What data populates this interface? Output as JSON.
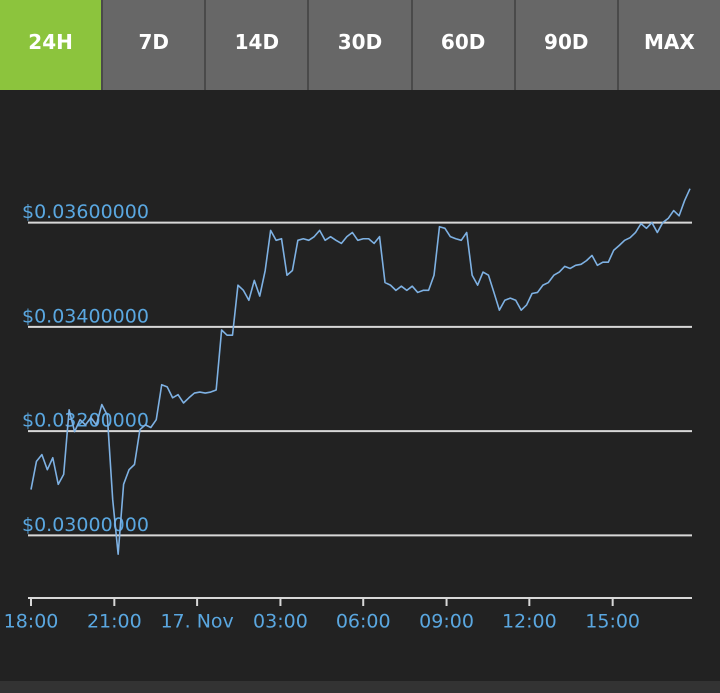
{
  "tabs": [
    "24H",
    "7D",
    "14D",
    "30D",
    "60D",
    "90D",
    "MAX"
  ],
  "active_tab": 0,
  "chart_data": {
    "type": "line",
    "series": [
      {
        "color": "#7eb1e3",
        "values": [
          0.03088,
          0.03142,
          0.03155,
          0.03126,
          0.03149,
          0.03098,
          0.03117,
          0.03241,
          0.03199,
          0.03222,
          0.03212,
          0.03226,
          0.03212,
          0.03251,
          0.03231,
          0.03069,
          0.02964,
          0.03098,
          0.03126,
          0.03136,
          0.03203,
          0.03212,
          0.03207,
          0.03222,
          0.03289,
          0.03285,
          0.03264,
          0.0327,
          0.03254,
          0.03264,
          0.03273,
          0.03275,
          0.03273,
          0.03275,
          0.03279,
          0.03394,
          0.03384,
          0.03384,
          0.0348,
          0.0347,
          0.03451,
          0.03489,
          0.03459,
          0.03508,
          0.03585,
          0.03566,
          0.03569,
          0.03499,
          0.03508,
          0.03566,
          0.03569,
          0.03566,
          0.03573,
          0.03585,
          0.03566,
          0.03573,
          0.03566,
          0.0356,
          0.03573,
          0.03581,
          0.03566,
          0.03569,
          0.03569,
          0.0356,
          0.03573,
          0.03485,
          0.0348,
          0.0347,
          0.03478,
          0.0347,
          0.03478,
          0.03466,
          0.0347,
          0.0347,
          0.03499,
          0.03592,
          0.03589,
          0.03573,
          0.03569,
          0.03566,
          0.03581,
          0.03499,
          0.0348,
          0.03505,
          0.03499,
          0.03466,
          0.03432,
          0.03451,
          0.03455,
          0.03451,
          0.03432,
          0.03442,
          0.03464,
          0.03466,
          0.0348,
          0.03485,
          0.03499,
          0.03505,
          0.03516,
          0.03512,
          0.03518,
          0.0352,
          0.03527,
          0.03537,
          0.03518,
          0.03524,
          0.03524,
          0.03547,
          0.03556,
          0.03566,
          0.03571,
          0.03581,
          0.03598,
          0.03589,
          0.036,
          0.03581,
          0.036,
          0.03608,
          0.03623,
          0.03613,
          0.03642,
          0.03665
        ]
      }
    ],
    "xlim": [
      0,
      121
    ],
    "xticks": [
      {
        "value": 0,
        "label": "18:00"
      },
      {
        "value": 15.3,
        "label": "21:00"
      },
      {
        "value": 30.5,
        "label": "17. Nov"
      },
      {
        "value": 45.8,
        "label": "03:00"
      },
      {
        "value": 61,
        "label": "06:00"
      },
      {
        "value": 76.3,
        "label": "09:00"
      },
      {
        "value": 91.5,
        "label": "12:00"
      },
      {
        "value": 106.8,
        "label": "15:00"
      }
    ],
    "ylim": [
      0.0288,
      0.0372
    ],
    "yticks": [
      {
        "value": 0.03,
        "label": "$0.03000000"
      },
      {
        "value": 0.032,
        "label": "$0.03200000"
      },
      {
        "value": 0.034,
        "label": "$0.03400000"
      },
      {
        "value": 0.036,
        "label": "$0.03600000"
      }
    ],
    "grid": true
  }
}
